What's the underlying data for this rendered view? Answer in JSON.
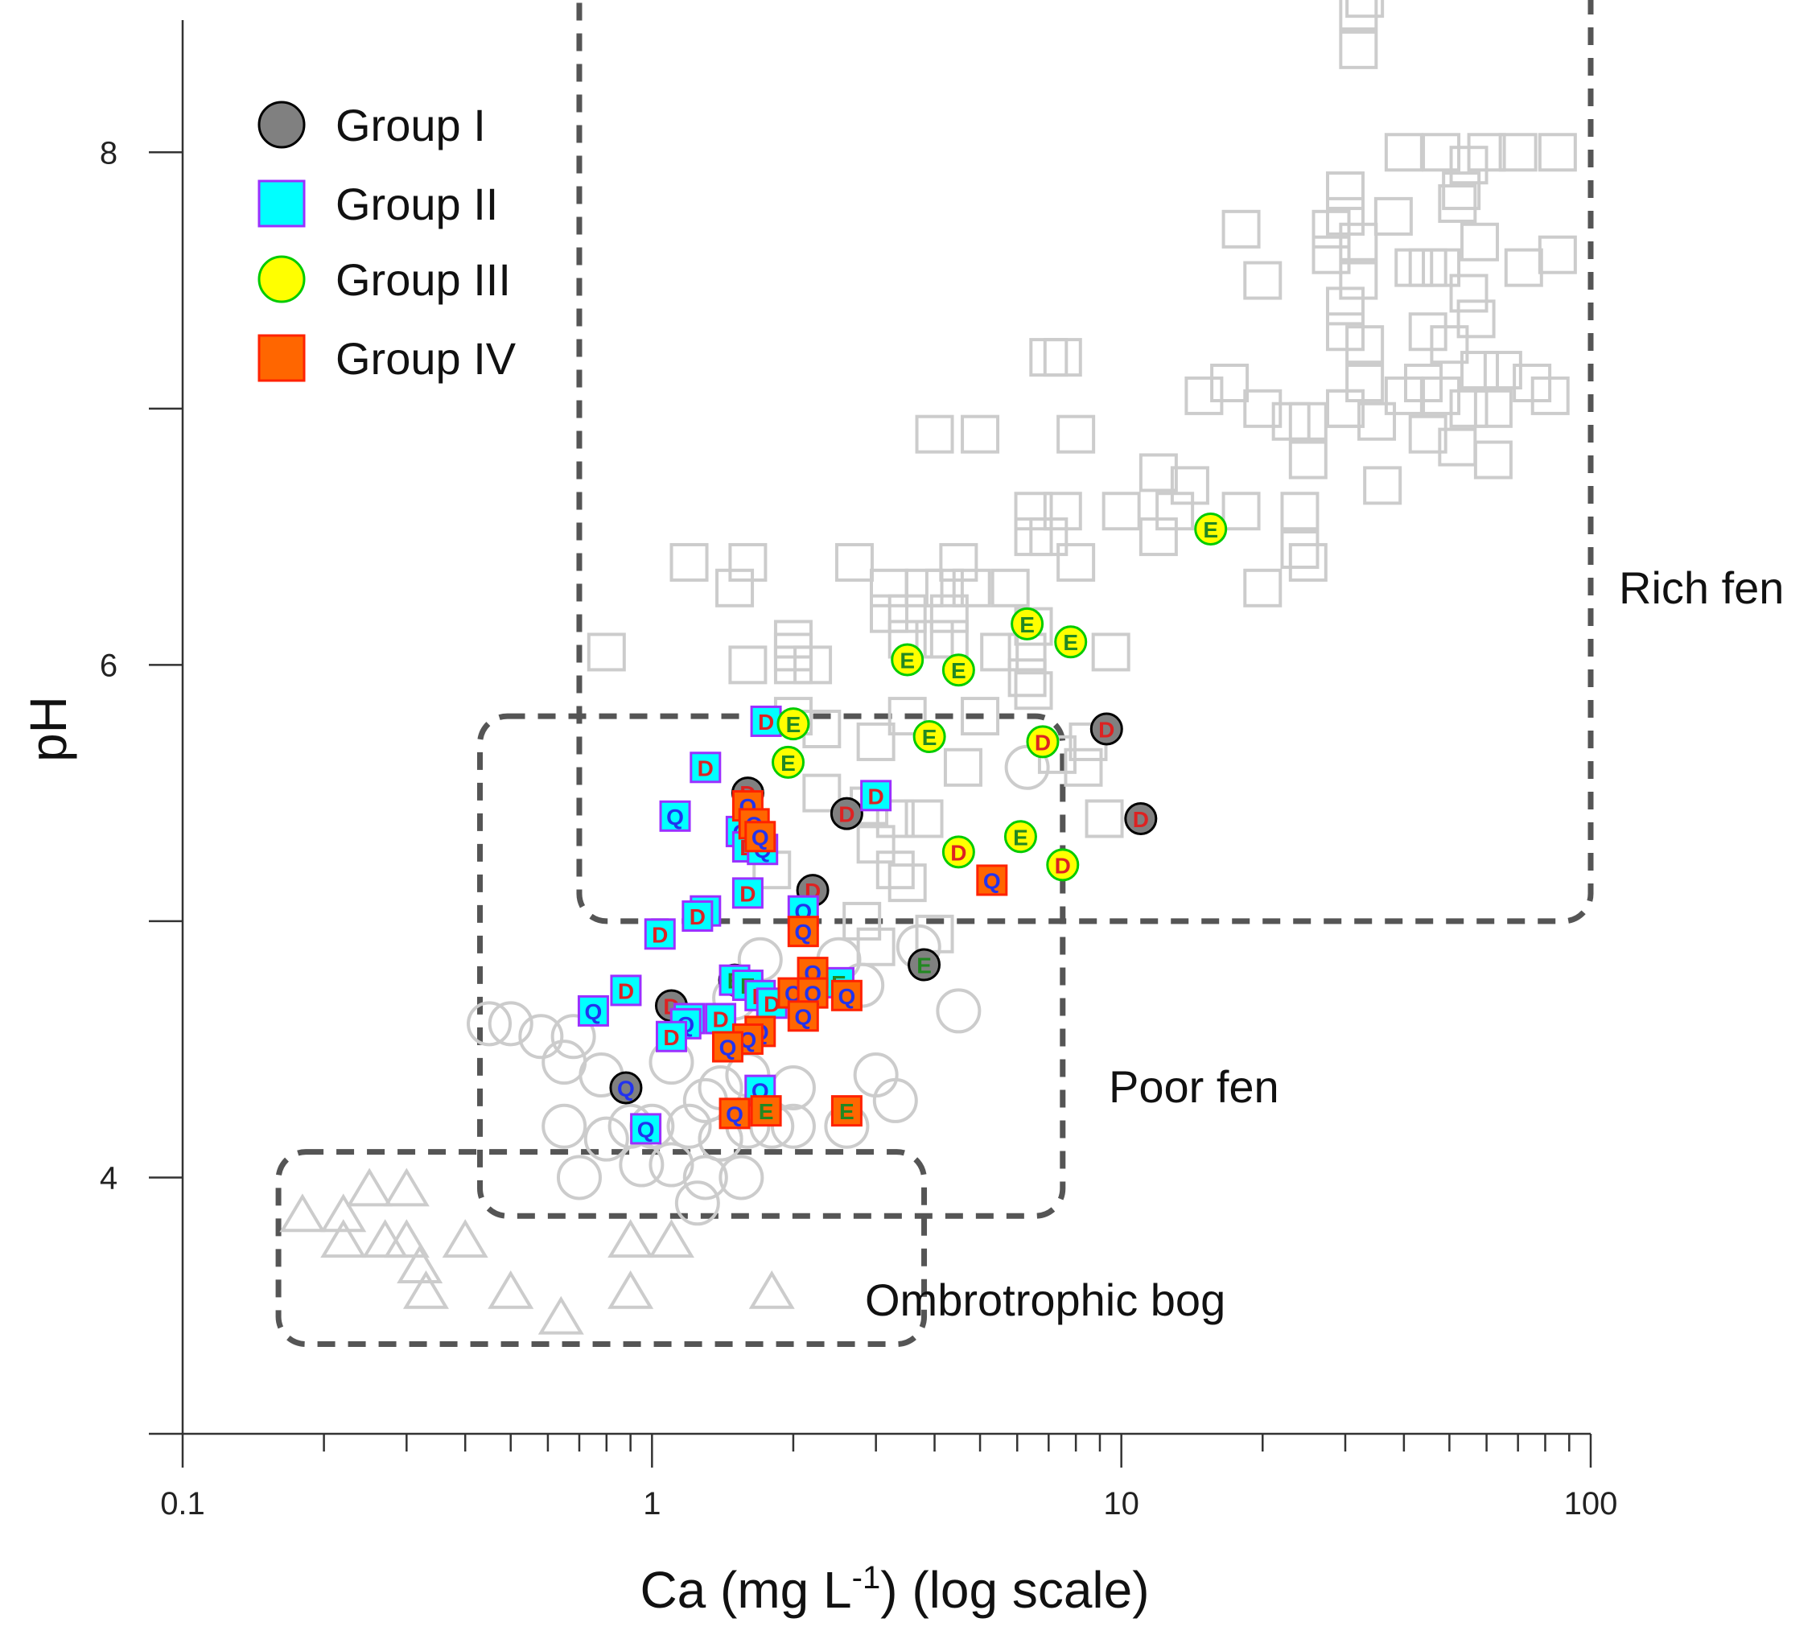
{
  "chart_data": {
    "type": "scatter",
    "title": "",
    "xlabel": "Ca (mg L",
    "xlabel_superscript": "-1",
    "xlabel_suffix": ") (log scale)",
    "ylabel": "pH",
    "xscale": "log",
    "xlim": [
      0.1,
      100
    ],
    "ylim": [
      3,
      8.5
    ],
    "x_ticks": [
      0.1,
      1,
      10,
      100
    ],
    "x_tick_labels": [
      "0.1",
      "1",
      "10",
      "100"
    ],
    "y_ticks": [
      4,
      6,
      8
    ],
    "y_tick_labels": [
      "4",
      "6",
      "8"
    ],
    "legend_position": "top-left",
    "colors": {
      "group1_fill": "#808080",
      "group2_fill": "#00ffff",
      "group2_stroke": "#9b30ff",
      "group3_fill": "#ffff00",
      "group3_stroke": "#00cc00",
      "group4_fill": "#ff6600",
      "group4_stroke": "#ff2200",
      "letter_D": "#dd2222",
      "letter_Q": "#2233ee",
      "letter_E": "#228822",
      "background_marks": "#cccccc",
      "region_border": "#555555"
    },
    "legend": [
      {
        "label": "Group I",
        "shape": "circle",
        "fill": "#808080",
        "stroke": "#000000"
      },
      {
        "label": "Group II",
        "shape": "square",
        "fill": "#00ffff",
        "stroke": "#9b30ff"
      },
      {
        "label": "Group III",
        "shape": "circle",
        "fill": "#ffff00",
        "stroke": "#00cc00"
      },
      {
        "label": "Group IV",
        "shape": "square",
        "fill": "#ff6600",
        "stroke": "#ff2200"
      }
    ],
    "regions": [
      {
        "label": "Rich fen",
        "x": [
          0.7,
          100
        ],
        "y": [
          5.0,
          8.75
        ]
      },
      {
        "label": "Poor fen",
        "x": [
          0.43,
          7.5
        ],
        "y": [
          3.85,
          5.8
        ]
      },
      {
        "label": "Ombrotrophic bog",
        "x": [
          0.16,
          3.8
        ],
        "y": [
          3.35,
          4.1
        ]
      }
    ],
    "background_series": [
      {
        "shape": "square",
        "points": [
          [
            32,
            8.55
          ],
          [
            32,
            8.4
          ],
          [
            33,
            8.6
          ],
          [
            40,
            8.0
          ],
          [
            48,
            8.0
          ],
          [
            60,
            8.0
          ],
          [
            70,
            8.0
          ],
          [
            85,
            8.0
          ],
          [
            55,
            7.95
          ],
          [
            30,
            7.85
          ],
          [
            30,
            7.75
          ],
          [
            28,
            7.7
          ],
          [
            38,
            7.75
          ],
          [
            52,
            7.8
          ],
          [
            53,
            7.85
          ],
          [
            18,
            7.7
          ],
          [
            28,
            7.6
          ],
          [
            32,
            7.65
          ],
          [
            45,
            7.55
          ],
          [
            58,
            7.65
          ],
          [
            20,
            7.5
          ],
          [
            30,
            7.4
          ],
          [
            32,
            7.5
          ],
          [
            42,
            7.55
          ],
          [
            48,
            7.55
          ],
          [
            55,
            7.45
          ],
          [
            72,
            7.55
          ],
          [
            85,
            7.6
          ],
          [
            30,
            7.3
          ],
          [
            33,
            7.25
          ],
          [
            45,
            7.3
          ],
          [
            50,
            7.25
          ],
          [
            57,
            7.35
          ],
          [
            33,
            7.1
          ],
          [
            44,
            7.1
          ],
          [
            58,
            7.15
          ],
          [
            65,
            7.15
          ],
          [
            75,
            7.1
          ],
          [
            30,
            7.0
          ],
          [
            40,
            7.05
          ],
          [
            48,
            7.05
          ],
          [
            62,
            7.0
          ],
          [
            82,
            7.05
          ],
          [
            25,
            6.95
          ],
          [
            30,
            7.0
          ],
          [
            35,
            6.95
          ],
          [
            55,
            7.0
          ],
          [
            15,
            7.05
          ],
          [
            23,
            6.95
          ],
          [
            45,
            6.9
          ],
          [
            52,
            6.85
          ],
          [
            7.0,
            7.2
          ],
          [
            7.5,
            7.2
          ],
          [
            17,
            7.1
          ],
          [
            20,
            7.0
          ],
          [
            4.0,
            6.9
          ],
          [
            5.0,
            6.9
          ],
          [
            8.0,
            6.9
          ],
          [
            25,
            6.8
          ],
          [
            36,
            6.7
          ],
          [
            62,
            6.8
          ],
          [
            12,
            6.75
          ],
          [
            14,
            6.7
          ],
          [
            10,
            6.6
          ],
          [
            13,
            6.6
          ],
          [
            18,
            6.6
          ],
          [
            24,
            6.6
          ],
          [
            6.5,
            6.6
          ],
          [
            7.5,
            6.6
          ],
          [
            6.5,
            6.5
          ],
          [
            7.0,
            6.5
          ],
          [
            12,
            6.5
          ],
          [
            24,
            6.45
          ],
          [
            1.2,
            6.4
          ],
          [
            1.6,
            6.4
          ],
          [
            2.7,
            6.4
          ],
          [
            4.5,
            6.4
          ],
          [
            8.0,
            6.4
          ],
          [
            25,
            6.4
          ],
          [
            1.5,
            6.3
          ],
          [
            3.2,
            6.3
          ],
          [
            3.8,
            6.3
          ],
          [
            4.2,
            6.3
          ],
          [
            4.8,
            6.3
          ],
          [
            5.8,
            6.3
          ],
          [
            20,
            6.3
          ],
          [
            3.2,
            6.2
          ],
          [
            3.5,
            6.2
          ],
          [
            4.3,
            6.2
          ],
          [
            6.5,
            6.15
          ],
          [
            2.0,
            6.1
          ],
          [
            3.5,
            6.1
          ],
          [
            4.0,
            6.1
          ],
          [
            4.3,
            6.1
          ],
          [
            0.8,
            6.05
          ],
          [
            2.0,
            6.05
          ],
          [
            5.5,
            6.05
          ],
          [
            6.3,
            6.05
          ],
          [
            9.5,
            6.05
          ],
          [
            1.6,
            6.0
          ],
          [
            2.0,
            6.0
          ],
          [
            2.2,
            6.0
          ],
          [
            6.3,
            5.95
          ],
          [
            6.5,
            5.9
          ],
          [
            2.0,
            5.8
          ],
          [
            3.5,
            5.8
          ],
          [
            5.0,
            5.8
          ],
          [
            2.3,
            5.75
          ],
          [
            3.0,
            5.7
          ],
          [
            8.5,
            5.7
          ],
          [
            7.3,
            5.65
          ],
          [
            4.6,
            5.6
          ],
          [
            8.3,
            5.6
          ],
          [
            2.3,
            5.5
          ],
          [
            2.9,
            5.45
          ],
          [
            3.3,
            5.4
          ],
          [
            3.8,
            5.4
          ],
          [
            9.2,
            5.4
          ],
          [
            3.0,
            5.3
          ],
          [
            3.3,
            5.2
          ],
          [
            3.5,
            5.15
          ],
          [
            1.8,
            5.2
          ],
          [
            2.8,
            5.0
          ],
          [
            4.0,
            4.95
          ],
          [
            3.0,
            4.9
          ]
        ]
      },
      {
        "shape": "circle",
        "points": [
          [
            6.3,
            5.6
          ],
          [
            3.7,
            4.9
          ],
          [
            2.5,
            4.85
          ],
          [
            1.7,
            4.85
          ],
          [
            2.8,
            4.75
          ],
          [
            1.5,
            4.7
          ],
          [
            4.5,
            4.65
          ],
          [
            0.45,
            4.6
          ],
          [
            0.5,
            4.6
          ],
          [
            0.58,
            4.55
          ],
          [
            0.68,
            4.55
          ],
          [
            0.65,
            4.45
          ],
          [
            0.78,
            4.4
          ],
          [
            1.1,
            4.45
          ],
          [
            1.3,
            4.3
          ],
          [
            1.4,
            4.35
          ],
          [
            1.6,
            4.4
          ],
          [
            2.0,
            4.35
          ],
          [
            3.0,
            4.4
          ],
          [
            3.3,
            4.3
          ],
          [
            0.65,
            4.2
          ],
          [
            0.8,
            4.15
          ],
          [
            0.9,
            4.2
          ],
          [
            1.0,
            4.2
          ],
          [
            1.2,
            4.2
          ],
          [
            1.4,
            4.15
          ],
          [
            1.6,
            4.2
          ],
          [
            1.8,
            4.2
          ],
          [
            2.0,
            4.2
          ],
          [
            2.6,
            4.2
          ],
          [
            0.7,
            4.0
          ],
          [
            0.95,
            4.05
          ],
          [
            1.1,
            4.05
          ],
          [
            1.3,
            4.0
          ],
          [
            1.55,
            4.0
          ],
          [
            1.4,
            4.15
          ],
          [
            1.25,
            3.9
          ]
        ]
      },
      {
        "shape": "triangle",
        "points": [
          [
            0.18,
            3.85
          ],
          [
            0.22,
            3.85
          ],
          [
            0.25,
            3.95
          ],
          [
            0.3,
            3.95
          ],
          [
            0.22,
            3.75
          ],
          [
            0.27,
            3.75
          ],
          [
            0.3,
            3.75
          ],
          [
            0.4,
            3.75
          ],
          [
            0.32,
            3.65
          ],
          [
            0.33,
            3.55
          ],
          [
            0.5,
            3.55
          ],
          [
            0.9,
            3.55
          ],
          [
            1.8,
            3.55
          ],
          [
            0.64,
            3.45
          ],
          [
            0.9,
            3.75
          ],
          [
            1.1,
            3.75
          ]
        ]
      }
    ],
    "series": [
      {
        "name": "Group I",
        "points": [
          {
            "x": 9.3,
            "y": 5.75,
            "label": "D"
          },
          {
            "x": 11.0,
            "y": 5.4,
            "label": "D"
          },
          {
            "x": 1.6,
            "y": 5.5,
            "label": "D"
          },
          {
            "x": 2.6,
            "y": 5.42,
            "label": "D"
          },
          {
            "x": 2.2,
            "y": 5.12,
            "label": "D"
          },
          {
            "x": 3.8,
            "y": 4.83,
            "label": "E"
          },
          {
            "x": 1.5,
            "y": 4.77,
            "label": "D"
          },
          {
            "x": 1.1,
            "y": 4.67,
            "label": "D"
          },
          {
            "x": 0.88,
            "y": 4.35,
            "label": "Q"
          }
        ]
      },
      {
        "name": "Group II",
        "points": [
          {
            "x": 1.75,
            "y": 5.78,
            "label": "D"
          },
          {
            "x": 1.3,
            "y": 5.6,
            "label": "D"
          },
          {
            "x": 3.0,
            "y": 5.49,
            "label": "D"
          },
          {
            "x": 1.12,
            "y": 5.41,
            "label": "Q"
          },
          {
            "x": 1.55,
            "y": 5.35,
            "label": "Q"
          },
          {
            "x": 1.6,
            "y": 5.29,
            "label": "D"
          },
          {
            "x": 1.72,
            "y": 5.28,
            "label": "Q"
          },
          {
            "x": 1.6,
            "y": 5.11,
            "label": "D"
          },
          {
            "x": 2.1,
            "y": 5.04,
            "label": "Q"
          },
          {
            "x": 1.3,
            "y": 5.04,
            "label": "D"
          },
          {
            "x": 1.25,
            "y": 5.02,
            "label": "D"
          },
          {
            "x": 1.04,
            "y": 4.95,
            "label": "D"
          },
          {
            "x": 1.5,
            "y": 4.77,
            "label": "E"
          },
          {
            "x": 2.5,
            "y": 4.76,
            "label": "E"
          },
          {
            "x": 1.6,
            "y": 4.75,
            "label": "E"
          },
          {
            "x": 0.88,
            "y": 4.73,
            "label": "D"
          },
          {
            "x": 1.7,
            "y": 4.71,
            "label": "D"
          },
          {
            "x": 1.8,
            "y": 4.68,
            "label": "D"
          },
          {
            "x": 0.75,
            "y": 4.65,
            "label": "Q"
          },
          {
            "x": 1.4,
            "y": 4.62,
            "label": "D"
          },
          {
            "x": 1.2,
            "y": 4.62,
            "label": "Q"
          },
          {
            "x": 1.18,
            "y": 4.6,
            "label": "Q"
          },
          {
            "x": 1.1,
            "y": 4.55,
            "label": "D"
          },
          {
            "x": 1.7,
            "y": 4.34,
            "label": "Q"
          },
          {
            "x": 0.97,
            "y": 4.19,
            "label": "Q"
          }
        ]
      },
      {
        "name": "Group III",
        "points": [
          {
            "x": 15.5,
            "y": 6.53,
            "label": "E"
          },
          {
            "x": 6.3,
            "y": 6.16,
            "label": "E"
          },
          {
            "x": 7.8,
            "y": 6.09,
            "label": "E"
          },
          {
            "x": 3.5,
            "y": 6.02,
            "label": "E"
          },
          {
            "x": 4.5,
            "y": 5.98,
            "label": "E"
          },
          {
            "x": 2.0,
            "y": 5.77,
            "label": "E"
          },
          {
            "x": 3.9,
            "y": 5.72,
            "label": "E"
          },
          {
            "x": 6.8,
            "y": 5.7,
            "label": "D"
          },
          {
            "x": 1.95,
            "y": 5.62,
            "label": "E"
          },
          {
            "x": 6.1,
            "y": 5.33,
            "label": "E"
          },
          {
            "x": 4.5,
            "y": 5.27,
            "label": "D"
          },
          {
            "x": 7.5,
            "y": 5.22,
            "label": "D"
          }
        ]
      },
      {
        "name": "Group IV",
        "points": [
          {
            "x": 1.6,
            "y": 5.45,
            "label": "Q"
          },
          {
            "x": 1.65,
            "y": 5.38,
            "label": "Q"
          },
          {
            "x": 1.7,
            "y": 5.33,
            "label": "Q"
          },
          {
            "x": 5.3,
            "y": 5.16,
            "label": "Q"
          },
          {
            "x": 2.1,
            "y": 4.96,
            "label": "Q"
          },
          {
            "x": 2.2,
            "y": 4.8,
            "label": "Q"
          },
          {
            "x": 2.0,
            "y": 4.72,
            "label": "Q"
          },
          {
            "x": 2.2,
            "y": 4.72,
            "label": "Q"
          },
          {
            "x": 2.6,
            "y": 4.71,
            "label": "Q"
          },
          {
            "x": 2.1,
            "y": 4.63,
            "label": "Q"
          },
          {
            "x": 1.7,
            "y": 4.57,
            "label": "Q"
          },
          {
            "x": 1.6,
            "y": 4.54,
            "label": "Q"
          },
          {
            "x": 1.45,
            "y": 4.51,
            "label": "Q"
          },
          {
            "x": 2.6,
            "y": 4.26,
            "label": "E"
          },
          {
            "x": 1.5,
            "y": 4.25,
            "label": "Q"
          },
          {
            "x": 1.75,
            "y": 4.26,
            "label": "E"
          }
        ]
      }
    ],
    "region_labels": [
      {
        "text": "Rich fen"
      },
      {
        "text": "Poor fen"
      },
      {
        "text": "Ombrotrophic bog"
      }
    ]
  }
}
